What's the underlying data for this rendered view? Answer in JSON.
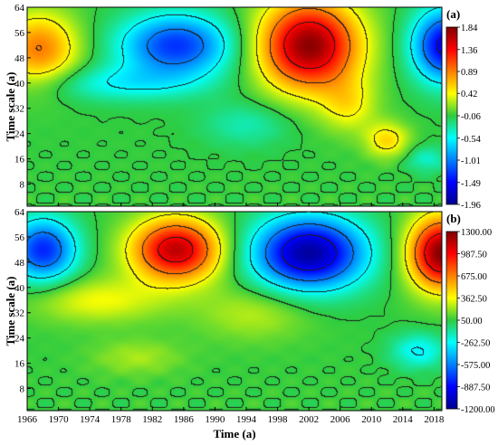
{
  "chart_data": [
    {
      "type": "heatmap",
      "panel_label": "(a)",
      "xlabel": "",
      "ylabel": "Time scale (a)",
      "xlim": [
        1966,
        2019
      ],
      "ylim": [
        1,
        64
      ],
      "yticks": [
        "64",
        "56",
        "48",
        "40",
        "32",
        "24",
        "16",
        "8"
      ],
      "ytick_values": [
        64,
        56,
        48,
        40,
        32,
        24,
        16,
        8
      ],
      "colorbar": {
        "range": [
          -1.96,
          1.84
        ],
        "labels": [
          "1.84",
          "1.36",
          "0.89",
          "0.42",
          "-0.06",
          "-0.54",
          "-1.01",
          "-1.49",
          "-1.96"
        ],
        "values": [
          1.84,
          1.36,
          0.89,
          0.42,
          -0.06,
          -0.54,
          -1.01,
          -1.49,
          -1.96
        ]
      },
      "features": [
        {
          "x": 1967.5,
          "y": 51,
          "value": 0.9,
          "sx": 3.5,
          "sy": 8
        },
        {
          "x": 1985,
          "y": 52,
          "value": -1.3,
          "sx": 5,
          "sy": 7
        },
        {
          "x": 2002,
          "y": 52,
          "value": 1.8,
          "sx": 4.5,
          "sy": 10
        },
        {
          "x": 2019.5,
          "y": 52,
          "value": -1.6,
          "sx": 3,
          "sy": 8
        },
        {
          "x": 1978,
          "y": 40,
          "value": -0.5,
          "sx": 7,
          "sy": 4
        },
        {
          "x": 2007,
          "y": 33,
          "value": 0.4,
          "sx": 2.5,
          "sy": 6
        },
        {
          "x": 2012,
          "y": 22,
          "value": 0.55,
          "sx": 2,
          "sy": 4
        },
        {
          "x": 1994,
          "y": 27,
          "value": -0.35,
          "sx": 4,
          "sy": 5
        },
        {
          "x": 2017,
          "y": 16,
          "value": -0.4,
          "sx": 2,
          "sy": 3
        }
      ]
    },
    {
      "type": "heatmap",
      "panel_label": "(b)",
      "xlabel": "Time (a)",
      "ylabel": "Time scale (a)",
      "xlim": [
        1966,
        2019
      ],
      "ylim": [
        1,
        64
      ],
      "xticks": [
        "1966",
        "1970",
        "1974",
        "1978",
        "1982",
        "1986",
        "1990",
        "1994",
        "1998",
        "2002",
        "2006",
        "2010",
        "2014",
        "2018"
      ],
      "xtick_values": [
        1966,
        1970,
        1974,
        1978,
        1982,
        1986,
        1990,
        1994,
        1998,
        2002,
        2006,
        2010,
        2014,
        2018
      ],
      "yticks": [
        "64",
        "56",
        "48",
        "40",
        "32",
        "24",
        "16",
        "8"
      ],
      "ytick_values": [
        64,
        56,
        48,
        40,
        32,
        24,
        16,
        8
      ],
      "colorbar": {
        "range": [
          -1200,
          1300
        ],
        "labels": [
          "1300.00",
          "987.50",
          "675.00",
          "362.50",
          "50.00",
          "-262.50",
          "-575.00",
          "-887.50",
          "-1200.00"
        ],
        "values": [
          1300,
          987.5,
          675,
          362.5,
          50,
          -262.5,
          -575,
          -887.5,
          -1200
        ]
      },
      "features": [
        {
          "x": 1968,
          "y": 52,
          "value": -800,
          "sx": 3,
          "sy": 7
        },
        {
          "x": 1985,
          "y": 52,
          "value": 1150,
          "sx": 4,
          "sy": 7
        },
        {
          "x": 2002,
          "y": 51,
          "value": -1150,
          "sx": 5,
          "sy": 8
        },
        {
          "x": 2019,
          "y": 51,
          "value": 1300,
          "sx": 3,
          "sy": 8
        },
        {
          "x": 1975,
          "y": 36,
          "value": 350,
          "sx": 6,
          "sy": 5
        },
        {
          "x": 1995,
          "y": 32,
          "value": 260,
          "sx": 5,
          "sy": 6
        },
        {
          "x": 2016,
          "y": 20,
          "value": -280,
          "sx": 2.5,
          "sy": 4
        },
        {
          "x": 1980,
          "y": 18,
          "value": 230,
          "sx": 4,
          "sy": 4
        }
      ]
    }
  ]
}
